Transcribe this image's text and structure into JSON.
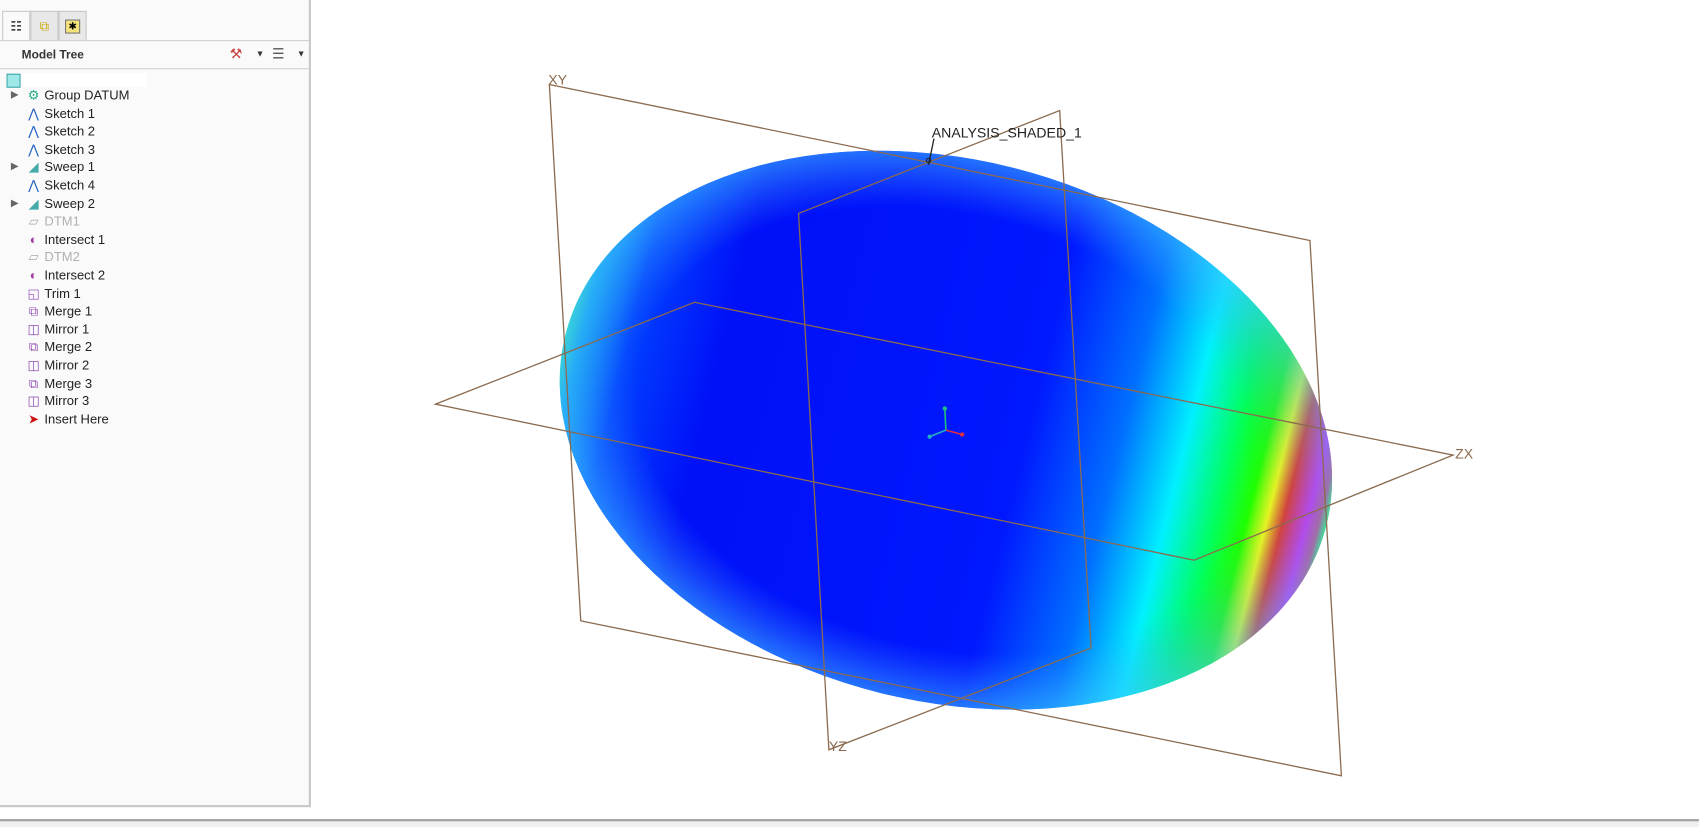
{
  "panel": {
    "tabs": [
      {
        "icon": "model-tree-icon",
        "active": true
      },
      {
        "icon": "layers-icon",
        "active": false
      },
      {
        "icon": "folder-star-icon",
        "active": false
      }
    ],
    "title": "Model Tree",
    "tools_icon": "settings-tools-icon",
    "show_icon": "tree-columns-icon"
  },
  "tree": {
    "root": "",
    "items": [
      {
        "label": "Group DATUM",
        "icon": "group-icon",
        "expandable": true,
        "dim": false
      },
      {
        "label": "Sketch 1",
        "icon": "sketch-icon",
        "expandable": false,
        "dim": false
      },
      {
        "label": "Sketch 2",
        "icon": "sketch-icon",
        "expandable": false,
        "dim": false
      },
      {
        "label": "Sketch 3",
        "icon": "sketch-icon",
        "expandable": false,
        "dim": false
      },
      {
        "label": "Sweep 1",
        "icon": "sweep-icon",
        "expandable": true,
        "dim": false
      },
      {
        "label": "Sketch 4",
        "icon": "sketch-icon",
        "expandable": false,
        "dim": false
      },
      {
        "label": "Sweep 2",
        "icon": "sweep-icon",
        "expandable": true,
        "dim": false
      },
      {
        "label": "DTM1",
        "icon": "datum-plane-icon",
        "expandable": false,
        "dim": true
      },
      {
        "label": "Intersect 1",
        "icon": "intersect-icon",
        "expandable": false,
        "dim": false
      },
      {
        "label": "DTM2",
        "icon": "datum-plane-icon",
        "expandable": false,
        "dim": true
      },
      {
        "label": "Intersect 2",
        "icon": "intersect-icon",
        "expandable": false,
        "dim": false
      },
      {
        "label": "Trim 1",
        "icon": "trim-icon",
        "expandable": false,
        "dim": false
      },
      {
        "label": "Merge 1",
        "icon": "merge-icon",
        "expandable": false,
        "dim": false
      },
      {
        "label": "Mirror 1",
        "icon": "mirror-icon",
        "expandable": false,
        "dim": false
      },
      {
        "label": "Merge 2",
        "icon": "merge-icon",
        "expandable": false,
        "dim": false
      },
      {
        "label": "Mirror 2",
        "icon": "mirror-icon",
        "expandable": false,
        "dim": false
      },
      {
        "label": "Merge 3",
        "icon": "merge-icon",
        "expandable": false,
        "dim": false
      },
      {
        "label": "Mirror 3",
        "icon": "mirror-icon",
        "expandable": false,
        "dim": false
      },
      {
        "label": "Insert Here",
        "icon": "insert-arrow-icon",
        "expandable": false,
        "dim": false
      }
    ]
  },
  "viewport": {
    "planes": {
      "xy": "XY",
      "yz": "YZ",
      "zx": "ZX"
    },
    "analysis_label": "ANALYSIS_SHADED_1",
    "plane_color": "#8b6a4e",
    "colors": {
      "low": "#0010ff",
      "mid": "#00ffff",
      "high": "#ff0000",
      "max": "#ff00e0"
    }
  }
}
